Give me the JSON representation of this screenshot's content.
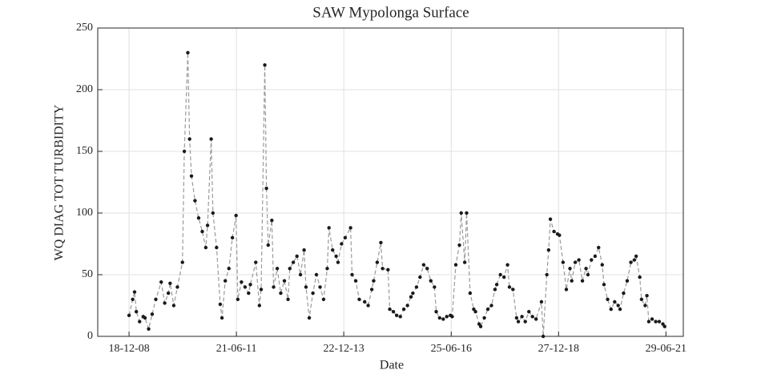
{
  "chart_data": {
    "type": "line",
    "title": "SAW Mypolonga Surface",
    "x_label": "Date",
    "y_label": "WQ DIAG TOT TURBIDITY",
    "line_color": "#9a9a9a",
    "marker_color": "#1a1a1a",
    "grid": true,
    "xlim": [
      "2008-03-26",
      "2021-11-24"
    ],
    "xticks": [
      {
        "value": "2008-12-18",
        "label": "18-12-08"
      },
      {
        "value": "2011-06-21",
        "label": "21-06-11"
      },
      {
        "value": "2013-12-22",
        "label": "22-12-13"
      },
      {
        "value": "2016-06-25",
        "label": "25-06-16"
      },
      {
        "value": "2018-12-27",
        "label": "27-12-18"
      },
      {
        "value": "2021-06-29",
        "label": "29-06-21"
      }
    ],
    "ylim": [
      0,
      250
    ],
    "yticks": [
      0,
      50,
      100,
      150,
      200,
      250
    ],
    "x": [
      "2008-12-18",
      "2009-01-18",
      "2009-02-03",
      "2009-02-18",
      "2009-03-18",
      "2009-04-18",
      "2009-05-03",
      "2009-06-03",
      "2009-07-03",
      "2009-08-03",
      "2009-09-18",
      "2009-10-18",
      "2009-11-18",
      "2009-12-03",
      "2010-01-03",
      "2010-02-03",
      "2010-03-18",
      "2010-04-03",
      "2010-05-03",
      "2010-05-18",
      "2010-06-03",
      "2010-07-03",
      "2010-08-03",
      "2010-09-03",
      "2010-10-03",
      "2010-10-18",
      "2010-11-18",
      "2010-12-03",
      "2011-01-03",
      "2011-02-03",
      "2011-02-18",
      "2011-03-18",
      "2011-04-18",
      "2011-05-18",
      "2011-06-18",
      "2011-07-03",
      "2011-08-03",
      "2011-09-03",
      "2011-10-03",
      "2011-10-18",
      "2011-12-03",
      "2012-01-03",
      "2012-01-18",
      "2012-02-18",
      "2012-03-03",
      "2012-03-18",
      "2012-04-18",
      "2012-05-03",
      "2012-06-03",
      "2012-07-03",
      "2012-08-03",
      "2012-09-03",
      "2012-09-18",
      "2012-10-18",
      "2012-11-18",
      "2012-12-18",
      "2013-01-18",
      "2013-02-03",
      "2013-03-03",
      "2013-04-03",
      "2013-05-03",
      "2013-06-03",
      "2013-07-03",
      "2013-08-03",
      "2013-08-18",
      "2013-09-18",
      "2013-10-18",
      "2013-11-03",
      "2013-12-03",
      "2014-01-03",
      "2014-02-18",
      "2014-03-03",
      "2014-04-03",
      "2014-05-03",
      "2014-06-18",
      "2014-07-18",
      "2014-08-18",
      "2014-09-03",
      "2014-10-03",
      "2014-11-03",
      "2014-11-18",
      "2015-01-03",
      "2015-01-18",
      "2015-02-18",
      "2015-03-18",
      "2015-04-18",
      "2015-05-18",
      "2015-06-18",
      "2015-07-18",
      "2015-08-03",
      "2015-09-03",
      "2015-10-03",
      "2015-11-03",
      "2015-12-03",
      "2016-01-03",
      "2016-02-03",
      "2016-02-18",
      "2016-03-18",
      "2016-04-18",
      "2016-05-18",
      "2016-06-18",
      "2016-07-03",
      "2016-08-03",
      "2016-09-03",
      "2016-09-18",
      "2016-10-18",
      "2016-11-03",
      "2016-12-03",
      "2017-01-03",
      "2017-01-18",
      "2017-02-18",
      "2017-03-03",
      "2017-04-03",
      "2017-05-03",
      "2017-06-03",
      "2017-07-03",
      "2017-07-18",
      "2017-08-18",
      "2017-09-18",
      "2017-10-18",
      "2017-11-03",
      "2017-12-03",
      "2018-01-03",
      "2018-01-18",
      "2018-02-18",
      "2018-03-18",
      "2018-04-18",
      "2018-05-18",
      "2018-06-18",
      "2018-08-03",
      "2018-08-18",
      "2018-09-18",
      "2018-10-03",
      "2018-10-18",
      "2018-11-18",
      "2018-12-18",
      "2019-01-03",
      "2019-02-03",
      "2019-03-03",
      "2019-04-03",
      "2019-04-18",
      "2019-05-18",
      "2019-06-18",
      "2019-07-18",
      "2019-08-18",
      "2019-09-03",
      "2019-10-03",
      "2019-11-03",
      "2019-12-03",
      "2020-01-03",
      "2020-01-18",
      "2020-02-18",
      "2020-03-18",
      "2020-04-18",
      "2020-05-18",
      "2020-06-03",
      "2020-07-03",
      "2020-08-03",
      "2020-09-03",
      "2020-10-03",
      "2020-10-18",
      "2020-11-18",
      "2020-12-03",
      "2021-01-03",
      "2021-01-18",
      "2021-02-03",
      "2021-03-03",
      "2021-04-03",
      "2021-05-03",
      "2021-06-03",
      "2021-06-18"
    ],
    "values": [
      17,
      30,
      36,
      20,
      12,
      16,
      15,
      6,
      18,
      30,
      44,
      27,
      35,
      43,
      25,
      40,
      60,
      150,
      230,
      160,
      130,
      110,
      96,
      85,
      72,
      90,
      160,
      100,
      72,
      26,
      15,
      45,
      55,
      80,
      98,
      30,
      44,
      40,
      35,
      42,
      60,
      25,
      38,
      220,
      120,
      74,
      94,
      40,
      55,
      35,
      45,
      30,
      55,
      60,
      65,
      50,
      70,
      40,
      15,
      35,
      50,
      40,
      30,
      55,
      88,
      70,
      65,
      60,
      75,
      80,
      88,
      50,
      45,
      30,
      28,
      25,
      38,
      45,
      60,
      76,
      55,
      54,
      22,
      20,
      17,
      16,
      22,
      25,
      32,
      35,
      40,
      48,
      58,
      55,
      45,
      40,
      20,
      15,
      14,
      16,
      17,
      16,
      58,
      74,
      100,
      60,
      100,
      35,
      22,
      20,
      10,
      8,
      15,
      22,
      25,
      38,
      42,
      50,
      48,
      58,
      40,
      38,
      15,
      12,
      16,
      12,
      20,
      16,
      14,
      28,
      0,
      50,
      70,
      95,
      85,
      83,
      82,
      60,
      38,
      55,
      45,
      60,
      62,
      45,
      55,
      50,
      62,
      65,
      72,
      58,
      42,
      30,
      22,
      28,
      25,
      22,
      35,
      45,
      60,
      62,
      65,
      48,
      30,
      25,
      33,
      12,
      14,
      12,
      12,
      10,
      8
    ]
  }
}
